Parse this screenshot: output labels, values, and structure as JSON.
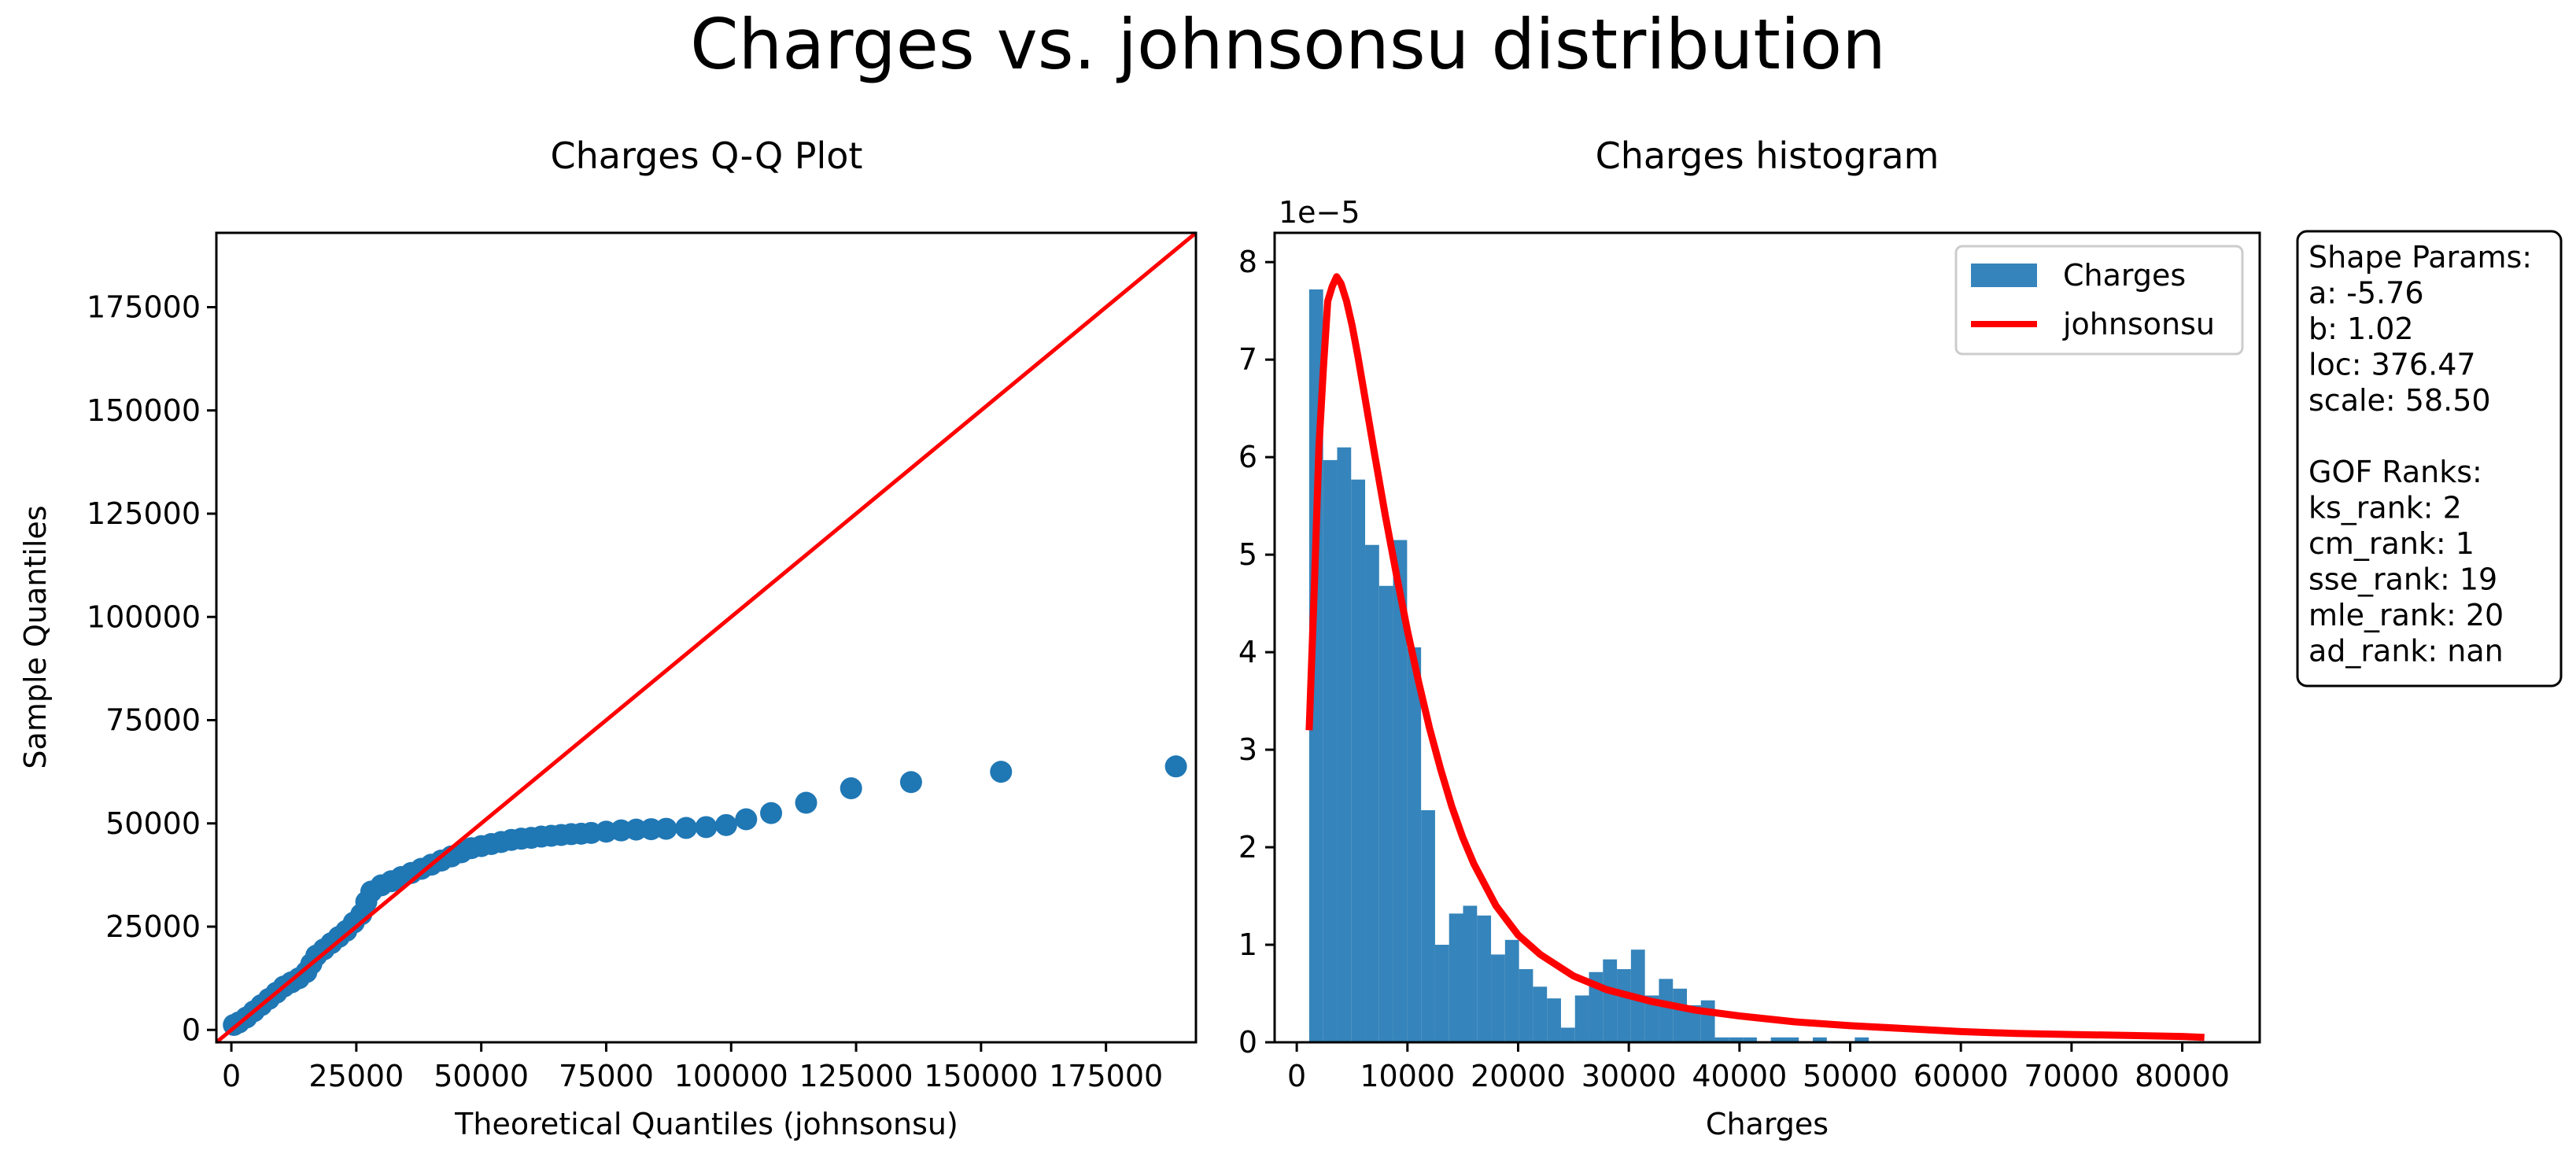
{
  "figure": {
    "suptitle": "Charges vs. johnsonsu distribution"
  },
  "chart_data": [
    {
      "type": "scatter",
      "title": "Charges Q-Q Plot",
      "xlabel": "Theoretical Quantiles (johnsonsu)",
      "ylabel": "Sample Quantiles",
      "xlim": [
        -3000,
        193000
      ],
      "ylim": [
        -3000,
        193000
      ],
      "xticks": [
        0,
        25000,
        50000,
        75000,
        100000,
        125000,
        150000,
        175000
      ],
      "xtick_labels": [
        "0",
        "25000",
        "50000",
        "75000",
        "100000",
        "125000",
        "150000",
        "175000"
      ],
      "yticks": [
        0,
        25000,
        50000,
        75000,
        100000,
        125000,
        150000,
        175000
      ],
      "ytick_labels": [
        "0",
        "25000",
        "50000",
        "75000",
        "100000",
        "125000",
        "150000",
        "175000"
      ],
      "reference_line": {
        "from": [
          -3000,
          -3000
        ],
        "to": [
          193000,
          193000
        ],
        "color": "#ff0000"
      },
      "point_color": "#1f77b4",
      "points": [
        [
          500,
          1200
        ],
        [
          1500,
          1800
        ],
        [
          3000,
          3000
        ],
        [
          4500,
          4500
        ],
        [
          6000,
          6000
        ],
        [
          7500,
          7500
        ],
        [
          9000,
          9000
        ],
        [
          10500,
          10500
        ],
        [
          12000,
          11500
        ],
        [
          13500,
          12500
        ],
        [
          15000,
          14000
        ],
        [
          16000,
          16000
        ],
        [
          17000,
          18000
        ],
        [
          18500,
          19500
        ],
        [
          20000,
          21000
        ],
        [
          21500,
          22500
        ],
        [
          23000,
          24000
        ],
        [
          24500,
          26000
        ],
        [
          26000,
          28000
        ],
        [
          27000,
          31000
        ],
        [
          28000,
          33500
        ],
        [
          30000,
          35000
        ],
        [
          32000,
          36000
        ],
        [
          34000,
          37000
        ],
        [
          36000,
          38000
        ],
        [
          38000,
          39000
        ],
        [
          40000,
          40000
        ],
        [
          42000,
          41000
        ],
        [
          44000,
          42000
        ],
        [
          46000,
          43000
        ],
        [
          48000,
          44000
        ],
        [
          50000,
          44500
        ],
        [
          52000,
          45000
        ],
        [
          54000,
          45500
        ],
        [
          56000,
          46000
        ],
        [
          58000,
          46300
        ],
        [
          60000,
          46500
        ],
        [
          62000,
          46800
        ],
        [
          64000,
          47000
        ],
        [
          66000,
          47200
        ],
        [
          68000,
          47400
        ],
        [
          70000,
          47500
        ],
        [
          72000,
          47700
        ],
        [
          75000,
          48000
        ],
        [
          78000,
          48300
        ],
        [
          81000,
          48500
        ],
        [
          84000,
          48600
        ],
        [
          87000,
          48700
        ],
        [
          91000,
          48900
        ],
        [
          95000,
          49100
        ],
        [
          99000,
          49600
        ],
        [
          103000,
          51000
        ],
        [
          108000,
          52500
        ],
        [
          115000,
          55000
        ],
        [
          124000,
          58500
        ],
        [
          136000,
          60000
        ],
        [
          154000,
          62500
        ],
        [
          189000,
          63800
        ]
      ]
    },
    {
      "type": "bar",
      "title": "Charges histogram",
      "xlabel": "Charges",
      "ylabel": "",
      "offset_text": "1e−5",
      "xlim": [
        -2000,
        87000
      ],
      "ylim": [
        0,
        8.3
      ],
      "xticks": [
        0,
        10000,
        20000,
        30000,
        40000,
        50000,
        60000,
        70000,
        80000
      ],
      "xtick_labels": [
        "0",
        "10000",
        "20000",
        "30000",
        "40000",
        "50000",
        "60000",
        "70000",
        "80000"
      ],
      "yticks": [
        0,
        1,
        2,
        3,
        4,
        5,
        6,
        7,
        8
      ],
      "ytick_labels": [
        "0",
        "1",
        "2",
        "3",
        "4",
        "5",
        "6",
        "7",
        "8"
      ],
      "bin_start": 1121,
      "bin_width": 1264,
      "bar_color": "#1f77b4",
      "curve_color": "#ff0000",
      "legend_position": "upper right",
      "legend": [
        {
          "label": "Charges",
          "kind": "patch"
        },
        {
          "label": "johnsonsu",
          "kind": "line"
        }
      ],
      "series": [
        {
          "name": "Charges",
          "values": [
            7.72,
            5.97,
            6.1,
            5.77,
            5.1,
            4.68,
            5.15,
            4.05,
            2.38,
            1.0,
            1.32,
            1.4,
            1.3,
            0.9,
            1.05,
            0.75,
            0.57,
            0.45,
            0.15,
            0.48,
            0.72,
            0.85,
            0.75,
            0.95,
            0.48,
            0.65,
            0.55,
            0.38,
            0.43,
            0.05,
            0.05,
            0.05,
            0.0,
            0.05,
            0.05,
            0.0,
            0.05,
            0.0,
            0.0,
            0.05,
            0.0,
            0.0,
            0.0,
            0.0,
            0.0,
            0.0,
            0.0,
            0.0,
            0.0,
            0.0
          ]
        },
        {
          "name": "johnsonsu",
          "x": [
            1121,
            1600,
            2000,
            2400,
            2800,
            3200,
            3600,
            4000,
            4500,
            5000,
            5500,
            6000,
            7000,
            8000,
            9000,
            10000,
            11000,
            12000,
            13000,
            14000,
            15000,
            16000,
            18000,
            20000,
            22000,
            25000,
            28000,
            32000,
            36000,
            40000,
            45000,
            50000,
            55000,
            60000,
            65000,
            70000,
            75000,
            80000,
            82000
          ],
          "y": [
            3.2,
            4.7,
            6.1,
            6.9,
            7.6,
            7.75,
            7.85,
            7.78,
            7.6,
            7.35,
            7.05,
            6.72,
            6.05,
            5.4,
            4.8,
            4.22,
            3.7,
            3.22,
            2.8,
            2.42,
            2.1,
            1.83,
            1.4,
            1.1,
            0.9,
            0.68,
            0.54,
            0.42,
            0.33,
            0.27,
            0.21,
            0.17,
            0.14,
            0.11,
            0.09,
            0.08,
            0.07,
            0.06,
            0.05
          ]
        }
      ]
    }
  ],
  "annotation_box": {
    "lines": [
      "Shape Params:",
      "a: -5.76",
      "b: 1.02",
      "loc: 376.47",
      "scale: 58.50",
      "",
      "GOF Ranks:",
      "ks_rank: 2",
      "cm_rank: 1",
      "sse_rank: 19",
      "mle_rank: 20",
      "ad_rank: nan"
    ]
  }
}
